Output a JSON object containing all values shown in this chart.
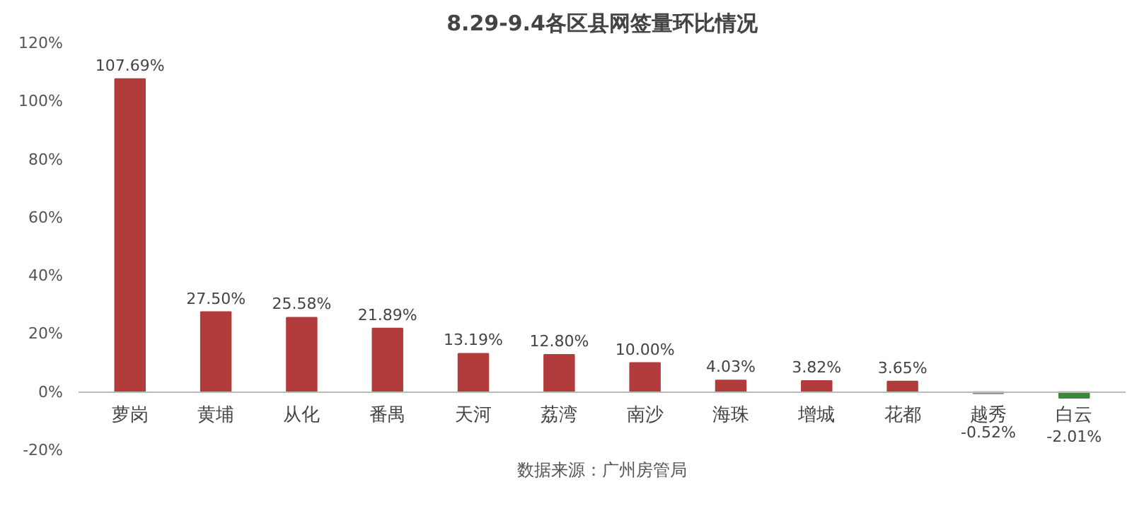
{
  "chart_data": {
    "type": "bar",
    "title": "8.29-9.4各区县网签量环比情况",
    "categories": [
      "萝岗",
      "黄埔",
      "从化",
      "番禺",
      "天河",
      "荔湾",
      "南沙",
      "海珠",
      "增城",
      "花都",
      "越秀",
      "白云"
    ],
    "values": [
      107.69,
      27.5,
      25.58,
      21.89,
      13.19,
      12.8,
      10.0,
      4.03,
      3.82,
      3.65,
      -0.52,
      -2.01
    ],
    "value_labels": [
      "107.69%",
      "27.50%",
      "25.58%",
      "21.89%",
      "13.19%",
      "12.80%",
      "10.00%",
      "4.03%",
      "3.82%",
      "3.65%",
      "-0.52%",
      "-2.01%"
    ],
    "colors": [
      "#b23b3b",
      "#b23b3b",
      "#b23b3b",
      "#b23b3b",
      "#b23b3b",
      "#b23b3b",
      "#b23b3b",
      "#b23b3b",
      "#b23b3b",
      "#b23b3b",
      "#8c8c8c",
      "#3a8a3a"
    ],
    "ylim": [
      -20,
      120
    ],
    "yticks": [
      {
        "value": -20,
        "label": "-20%"
      },
      {
        "value": 0,
        "label": "0%"
      },
      {
        "value": 20,
        "label": "20%"
      },
      {
        "value": 40,
        "label": "40%"
      },
      {
        "value": 60,
        "label": "60%"
      },
      {
        "value": 80,
        "label": "80%"
      },
      {
        "value": 100,
        "label": "100%"
      },
      {
        "value": 120,
        "label": "120%"
      }
    ],
    "annotations": [
      "数据来源：广州房管局"
    ],
    "grid": false
  }
}
